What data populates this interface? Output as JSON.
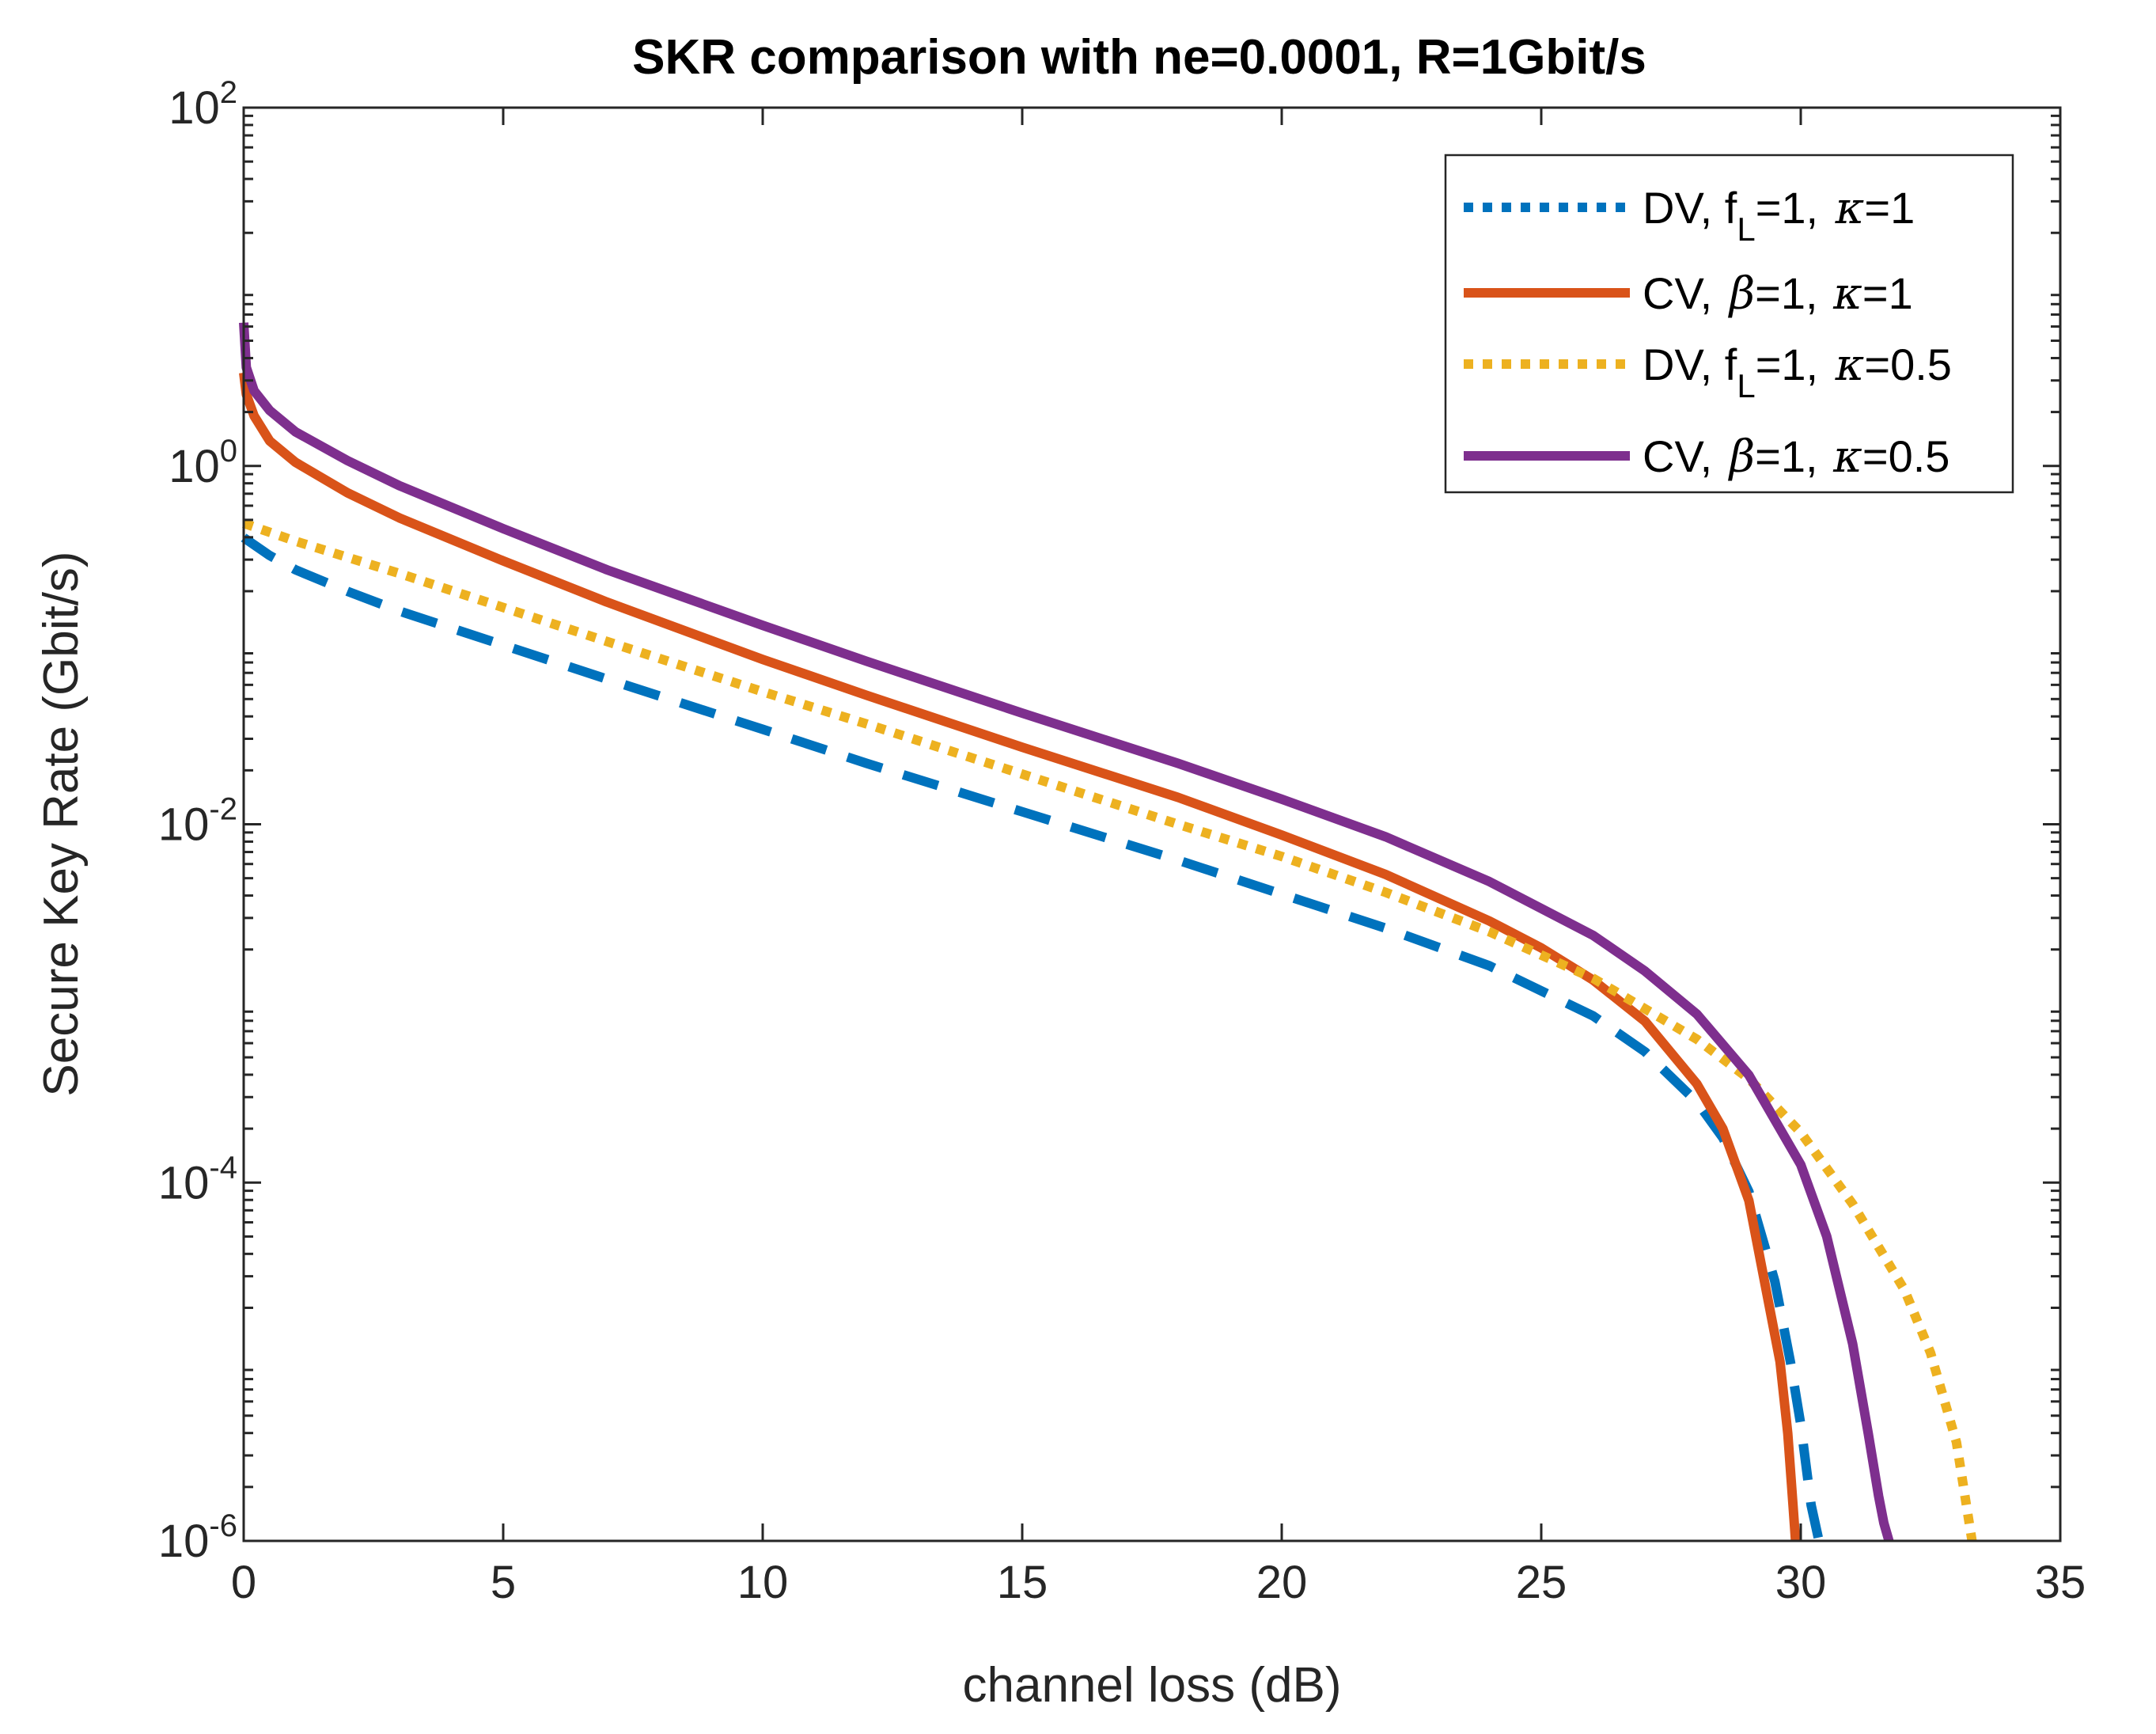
{
  "chart_data": {
    "type": "line",
    "title": "SKR comparison with ne=0.0001, R=1Gbit/s",
    "xlabel": "channel loss (dB)",
    "ylabel": "Secure Key Rate (Gbit/s)",
    "xlim": [
      0,
      35
    ],
    "ylim_log10": [
      -6,
      2
    ],
    "yscale": "log",
    "grid": false,
    "legend_position": "top-right",
    "x_ticks": [
      "0",
      "5",
      "10",
      "15",
      "20",
      "25",
      "30",
      "35"
    ],
    "y_ticks": [
      {
        "base": "10",
        "exp": "-6"
      },
      {
        "base": "10",
        "exp": "-4"
      },
      {
        "base": "10",
        "exp": "-2"
      },
      {
        "base": "10",
        "exp": "0"
      },
      {
        "base": "10",
        "exp": "2"
      }
    ],
    "series": [
      {
        "name": "DV, f_L=1, κ=1",
        "legend": {
          "pre": "DV, f",
          "sub": "L",
          "mid": "=1, ",
          "greek": "κ",
          "post": "=1"
        },
        "color": "#0072BD",
        "style": "dashed",
        "x": [
          0,
          0.5,
          1,
          2,
          3,
          5,
          7,
          10,
          12,
          15,
          18,
          20,
          22,
          24,
          26,
          27,
          28,
          28.5,
          29,
          29.5,
          29.8,
          30.0,
          30.2,
          30.35
        ],
        "log10y": [
          -0.4,
          -0.5,
          -0.58,
          -0.7,
          -0.81,
          -1.0,
          -1.19,
          -1.47,
          -1.66,
          -1.93,
          -2.2,
          -2.39,
          -2.58,
          -2.79,
          -3.07,
          -3.27,
          -3.55,
          -3.75,
          -4.05,
          -4.55,
          -5.0,
          -5.35,
          -5.8,
          -6.0
        ]
      },
      {
        "name": "CV, β=1, κ=1",
        "legend": {
          "pre": "CV, ",
          "sub": "",
          "mid": "",
          "greek": "β",
          "post": "=1, κ=1"
        },
        "color": "#D95319",
        "style": "solid",
        "x": [
          0,
          0.05,
          0.2,
          0.5,
          1,
          2,
          3,
          5,
          7,
          10,
          12,
          15,
          18,
          20,
          22,
          24,
          25,
          26,
          27,
          28,
          28.5,
          29,
          29.3,
          29.6,
          29.75,
          29.85,
          29.9
        ],
        "log10y": [
          0.52,
          0.4,
          0.28,
          0.14,
          0.02,
          -0.15,
          -0.29,
          -0.53,
          -0.76,
          -1.08,
          -1.28,
          -1.57,
          -1.85,
          -2.06,
          -2.28,
          -2.54,
          -2.69,
          -2.87,
          -3.1,
          -3.45,
          -3.7,
          -4.1,
          -4.55,
          -5.0,
          -5.4,
          -5.8,
          -6.0
        ]
      },
      {
        "name": "DV, f_L=1, κ=0.5",
        "legend": {
          "pre": "DV, f",
          "sub": "L",
          "mid": "=1, ",
          "greek": "κ",
          "post": "=0.5"
        },
        "color": "#EDB120",
        "style": "dotted",
        "x": [
          0,
          1,
          2,
          3,
          5,
          7,
          10,
          12,
          15,
          18,
          20,
          22,
          24,
          26,
          28,
          29,
          30,
          31,
          32,
          32.5,
          33,
          33.3
        ],
        "log10y": [
          -0.32,
          -0.42,
          -0.51,
          -0.6,
          -0.79,
          -0.98,
          -1.26,
          -1.44,
          -1.72,
          -2.0,
          -2.18,
          -2.38,
          -2.6,
          -2.86,
          -3.2,
          -3.42,
          -3.72,
          -4.12,
          -4.6,
          -4.95,
          -5.45,
          -6.0
        ]
      },
      {
        "name": "CV, β=1, κ=0.5",
        "legend": {
          "pre": "CV, ",
          "sub": "",
          "mid": "",
          "greek": "β",
          "post": "=1, κ=0.5"
        },
        "color": "#7E2F8E",
        "style": "solid",
        "x": [
          0,
          0.05,
          0.2,
          0.5,
          1,
          2,
          3,
          5,
          7,
          10,
          12,
          15,
          18,
          20,
          22,
          24,
          26,
          27,
          28,
          29,
          30,
          30.5,
          31,
          31.3,
          31.5,
          31.6,
          31.7
        ],
        "log10y": [
          0.8,
          0.55,
          0.42,
          0.31,
          0.19,
          0.03,
          -0.11,
          -0.35,
          -0.58,
          -0.89,
          -1.09,
          -1.38,
          -1.66,
          -1.86,
          -2.07,
          -2.32,
          -2.62,
          -2.82,
          -3.06,
          -3.4,
          -3.9,
          -4.3,
          -4.9,
          -5.4,
          -5.75,
          -5.9,
          -6.0
        ]
      }
    ]
  }
}
